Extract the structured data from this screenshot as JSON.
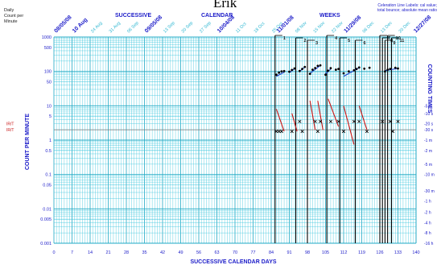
{
  "header": {
    "student_name": "Erik",
    "y_unit_label": [
      "Daily",
      "Count per",
      "Minute"
    ],
    "celeration_note": [
      "Celeration Line Labels: cal value;",
      "total bounce; absolute mean ratio"
    ]
  },
  "chart_data": {
    "type": "scatter",
    "title_parts": [
      "SUCCESSIVE",
      "CALENDAR",
      "WEEKS"
    ],
    "xlabel": "SUCCESSIVE CALENDAR DAYS",
    "ylabel": "COUNT PER MINUTE",
    "right_label": "COUNTING TIMES",
    "y_scale": "log",
    "xlim": [
      0,
      140
    ],
    "ylim": [
      0.001,
      1000
    ],
    "grid": true,
    "x_ticks": [
      0,
      7,
      14,
      21,
      28,
      35,
      42,
      49,
      56,
      63,
      70,
      77,
      84,
      91,
      98,
      105,
      112,
      119,
      126,
      133,
      140
    ],
    "y_ticks": [
      {
        "value": 1000,
        "label": "1000"
      },
      {
        "value": 500,
        "label": "500"
      },
      {
        "value": 100,
        "label": "100"
      },
      {
        "value": 50,
        "label": "50"
      },
      {
        "value": 10,
        "label": "10"
      },
      {
        "value": 5,
        "label": "5"
      },
      {
        "value": 1,
        "label": "1"
      },
      {
        "value": 0.5,
        "label": "0.5"
      },
      {
        "value": 0.1,
        "label": "0.1"
      },
      {
        "value": 0.05,
        "label": "0.05"
      },
      {
        "value": 0.01,
        "label": "0.01"
      },
      {
        "value": 0.005,
        "label": "0.005"
      },
      {
        "value": 0.001,
        "label": "0.001"
      }
    ],
    "counting_times": [
      {
        "value": 10,
        "label": "-5 s"
      },
      {
        "value": 6,
        "label": "-10 s"
      },
      {
        "value": 3,
        "label": "-20 s"
      },
      {
        "value": 2,
        "label": "-30 s"
      },
      {
        "value": 1,
        "label": "-1 m"
      },
      {
        "value": 0.5,
        "label": "-2 m"
      },
      {
        "value": 0.2,
        "label": "-5 m"
      },
      {
        "value": 0.1,
        "label": "-10 m"
      },
      {
        "value": 0.033,
        "label": "-30 m"
      },
      {
        "value": 0.017,
        "label": "-1 h"
      },
      {
        "value": 0.008,
        "label": "-2 h"
      },
      {
        "value": 0.004,
        "label": "-4 h"
      },
      {
        "value": 0.002,
        "label": "-8 h"
      },
      {
        "value": 0.001,
        "label": "-16 h"
      }
    ],
    "top_dates": [
      {
        "day": 0,
        "label": "08/05/08",
        "style": "date"
      },
      {
        "day": 7,
        "label": "10 Aug",
        "style": "date"
      },
      {
        "day": 14,
        "label": "24 Aug",
        "style": "small"
      },
      {
        "day": 21,
        "label": "31 Aug",
        "style": "small"
      },
      {
        "day": 28,
        "label": "06 Sep",
        "style": "small"
      },
      {
        "day": 35,
        "label": "09/05/08",
        "style": "date"
      },
      {
        "day": 42,
        "label": "13 Sep",
        "style": "small"
      },
      {
        "day": 49,
        "label": "20 Sep",
        "style": "small"
      },
      {
        "day": 56,
        "label": "27 Sep",
        "style": "small"
      },
      {
        "day": 63,
        "label": "10/04/08",
        "style": "date"
      },
      {
        "day": 70,
        "label": "11 Oct",
        "style": "small"
      },
      {
        "day": 77,
        "label": "18 Oct",
        "style": "small"
      },
      {
        "day": 84,
        "label": "25 Oct",
        "style": "small"
      },
      {
        "day": 86,
        "label": "11/01/08",
        "style": "date"
      },
      {
        "day": 93,
        "label": "08 Nov",
        "style": "small"
      },
      {
        "day": 100,
        "label": "15 Nov",
        "style": "small"
      },
      {
        "day": 107,
        "label": "22 Nov",
        "style": "small"
      },
      {
        "day": 112,
        "label": "11/29/08",
        "style": "date"
      },
      {
        "day": 119,
        "label": "06 Dec",
        "style": "small"
      },
      {
        "day": 126,
        "label": "13 Dec",
        "style": "small"
      },
      {
        "day": 133,
        "label": "20 Dec",
        "style": "small"
      },
      {
        "day": 139,
        "label": "12/27/08",
        "style": "date"
      }
    ],
    "left_markers": [
      {
        "label": "IR/T",
        "value": 3
      },
      {
        "label": "IR/T",
        "value": 2
      }
    ],
    "counting_time_floor": 2,
    "phase_lines": [
      {
        "x": 85.5,
        "label": "1"
      },
      {
        "x": 93.5,
        "label": "2"
      },
      {
        "x": 98,
        "label": "3"
      },
      {
        "x": 105.5,
        "label": "4"
      },
      {
        "x": 110.5,
        "label": "5"
      },
      {
        "x": 116.5,
        "label": "6"
      },
      {
        "x": 126,
        "label": "7"
      },
      {
        "x": 127,
        "label": "8"
      },
      {
        "x": 128,
        "label": "9"
      },
      {
        "x": 129,
        "label": "10"
      },
      {
        "x": 130.5,
        "label": "11"
      }
    ],
    "series": [
      {
        "role": "correct",
        "points": [
          [
            86,
            80
          ],
          [
            87,
            92
          ],
          [
            88,
            100
          ],
          [
            89,
            102
          ],
          [
            91,
            98
          ],
          [
            92,
            110
          ],
          [
            93,
            122
          ],
          [
            95,
            103
          ],
          [
            96,
            118
          ],
          [
            97,
            135
          ],
          [
            99,
            85
          ],
          [
            100,
            112
          ],
          [
            101,
            125
          ],
          [
            102,
            145
          ],
          [
            103,
            150
          ],
          [
            105,
            80
          ],
          [
            106,
            105
          ],
          [
            107,
            124
          ],
          [
            109,
            112
          ],
          [
            110,
            118
          ],
          [
            112,
            88
          ],
          [
            114,
            100
          ],
          [
            116,
            108
          ],
          [
            117,
            118
          ],
          [
            118,
            130
          ],
          [
            120,
            120
          ],
          [
            122,
            128
          ],
          [
            128,
            100
          ],
          [
            129,
            112
          ],
          [
            130,
            118
          ],
          [
            132,
            128
          ],
          [
            133,
            122
          ]
        ]
      },
      {
        "role": "incorrect",
        "points": [
          [
            86,
            1.8
          ],
          [
            87,
            1.8
          ],
          [
            88,
            1.8
          ],
          [
            92,
            1.8
          ],
          [
            95,
            3.5
          ],
          [
            96,
            1.8
          ],
          [
            101,
            3.5
          ],
          [
            102,
            1.8
          ],
          [
            103,
            3.5
          ],
          [
            107,
            3.5
          ],
          [
            110,
            3.5
          ],
          [
            112,
            1.8
          ],
          [
            116,
            3.5
          ],
          [
            118,
            3.5
          ],
          [
            121,
            1.8
          ],
          [
            127,
            3.5
          ],
          [
            130,
            3.5
          ],
          [
            131,
            1.8
          ],
          [
            133,
            3.5
          ]
        ]
      }
    ],
    "celeration_lines": [
      {
        "role": "correct",
        "from": [
          86,
          72
        ],
        "to": [
          89,
          95
        ]
      },
      {
        "role": "correct",
        "from": [
          91,
          92
        ],
        "to": [
          93,
          118
        ]
      },
      {
        "role": "correct",
        "from": [
          95,
          100
        ],
        "to": [
          97,
          135
        ]
      },
      {
        "role": "correct",
        "from": [
          99,
          88
        ],
        "to": [
          103,
          150
        ]
      },
      {
        "role": "correct",
        "from": [
          105,
          85
        ],
        "to": [
          107,
          118
        ]
      },
      {
        "role": "correct",
        "from": [
          112,
          72
        ],
        "to": [
          118,
          128
        ]
      },
      {
        "role": "correct",
        "from": [
          128,
          105
        ],
        "to": [
          133,
          122
        ]
      },
      {
        "role": "incorrect",
        "from": [
          86,
          8
        ],
        "to": [
          89,
          1.8
        ]
      },
      {
        "role": "incorrect",
        "from": [
          92,
          6
        ],
        "to": [
          94,
          1.8
        ]
      },
      {
        "role": "incorrect",
        "from": [
          99,
          14
        ],
        "to": [
          101,
          2
        ]
      },
      {
        "role": "incorrect",
        "from": [
          102,
          14
        ],
        "to": [
          104,
          2
        ]
      },
      {
        "role": "incorrect",
        "from": [
          106,
          16
        ],
        "to": [
          110,
          2.5
        ]
      },
      {
        "role": "incorrect",
        "from": [
          112,
          10
        ],
        "to": [
          116,
          0.75
        ]
      },
      {
        "role": "incorrect",
        "from": [
          118,
          10
        ],
        "to": [
          121,
          2
        ]
      }
    ],
    "colors": {
      "grid_line": "#3cc6dd",
      "grid_major": "#1fa9c4",
      "axis_text": "#1a1ac8",
      "correct": "#000000",
      "incorrect": "#c81414",
      "celeration_correct": "#1a3cc8",
      "celeration_incorrect": "#c81414"
    }
  }
}
